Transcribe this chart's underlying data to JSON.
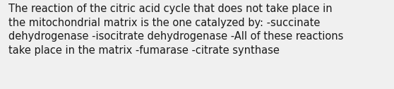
{
  "text": "The reaction of the citric acid cycle that does not take place in\nthe mitochondrial matrix is the one catalyzed by: -succinate\ndehydrogenase -isocitrate dehydrogenase -All of these reactions\ntake place in the matrix -fumarase -citrate synthase",
  "background_color": "#f0f0f0",
  "text_color": "#1a1a1a",
  "font_size": 10.5,
  "fig_width": 5.58,
  "fig_height": 1.26,
  "dpi": 100
}
